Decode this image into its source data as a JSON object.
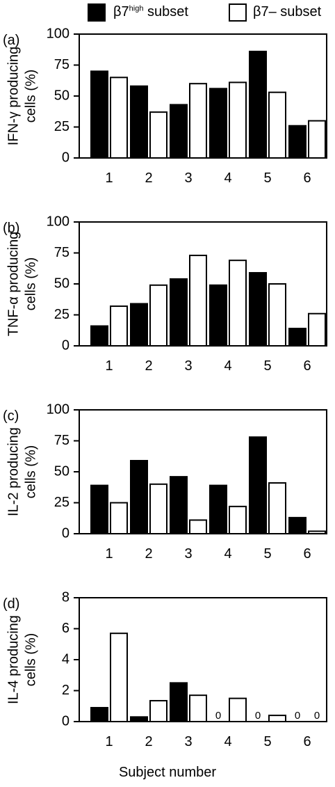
{
  "legend": {
    "filled": {
      "prefix": "β7",
      "sup": "high",
      "suffix": " subset",
      "color": "#000000"
    },
    "open": {
      "text": "β7– subset",
      "color": "#ffffff"
    }
  },
  "xlabel": "Subject number",
  "chart_data": [
    {
      "type": "bar",
      "panel_label": "(a)",
      "ylabel": [
        "IFN-γ producing",
        "cells (%)"
      ],
      "ylim": [
        0,
        100
      ],
      "yticks": [
        0,
        25,
        50,
        75,
        100
      ],
      "categories": [
        "1",
        "2",
        "3",
        "4",
        "5",
        "6"
      ],
      "series": [
        {
          "name": "β7high subset",
          "color": "#000000",
          "values": [
            70,
            58,
            43,
            56,
            86,
            26
          ]
        },
        {
          "name": "β7– subset",
          "color": "#ffffff",
          "values": [
            65,
            37,
            60,
            61,
            53,
            30
          ]
        }
      ],
      "zero_labels": []
    },
    {
      "type": "bar",
      "panel_label": "(b)",
      "ylabel": [
        "TNF-α producing",
        "cells (%)"
      ],
      "ylim": [
        0,
        100
      ],
      "yticks": [
        0,
        25,
        50,
        75,
        100
      ],
      "categories": [
        "1",
        "2",
        "3",
        "4",
        "5",
        "6"
      ],
      "series": [
        {
          "name": "β7high subset",
          "color": "#000000",
          "values": [
            16,
            34,
            54,
            49,
            59,
            14
          ]
        },
        {
          "name": "β7– subset",
          "color": "#ffffff",
          "values": [
            32,
            49,
            73,
            69,
            50,
            26
          ]
        }
      ],
      "zero_labels": []
    },
    {
      "type": "bar",
      "panel_label": "(c)",
      "ylabel": [
        "IL-2 producing",
        "cells (%)"
      ],
      "ylim": [
        0,
        100
      ],
      "yticks": [
        0,
        25,
        50,
        75,
        100
      ],
      "categories": [
        "1",
        "2",
        "3",
        "4",
        "5",
        "6"
      ],
      "series": [
        {
          "name": "β7high subset",
          "color": "#000000",
          "values": [
            39,
            59,
            46,
            39,
            78,
            13
          ]
        },
        {
          "name": "β7– subset",
          "color": "#ffffff",
          "values": [
            25,
            40,
            11,
            22,
            41,
            2
          ]
        }
      ],
      "zero_labels": []
    },
    {
      "type": "bar",
      "panel_label": "(d)",
      "ylabel": [
        "IL-4 producing",
        "cells (%)"
      ],
      "ylim": [
        0,
        8
      ],
      "yticks": [
        0,
        2,
        4,
        6,
        8
      ],
      "categories": [
        "1",
        "2",
        "3",
        "4",
        "5",
        "6"
      ],
      "series": [
        {
          "name": "β7high subset",
          "color": "#000000",
          "values": [
            0.9,
            0.3,
            2.5,
            0,
            0,
            0
          ]
        },
        {
          "name": "β7– subset",
          "color": "#ffffff",
          "values": [
            5.7,
            1.35,
            1.7,
            1.5,
            0.4,
            0
          ]
        }
      ],
      "zero_labels": [
        {
          "category": 3,
          "series": 0,
          "text": "0"
        },
        {
          "category": 4,
          "series": 0,
          "text": "0"
        },
        {
          "category": 5,
          "series": 0,
          "text": "0"
        },
        {
          "category": 5,
          "series": 1,
          "text": "0"
        }
      ]
    }
  ]
}
